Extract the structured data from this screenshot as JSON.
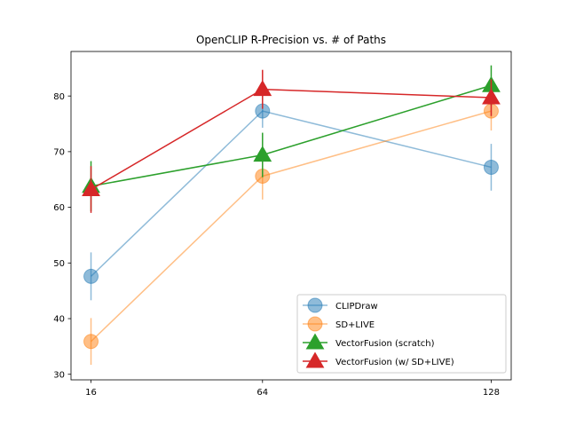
{
  "chart_data": {
    "type": "line",
    "title": "OpenCLIP R-Precision vs. # of Paths",
    "xlabel": "",
    "ylabel": "",
    "x": [
      16,
      64,
      128
    ],
    "x_tick_labels": [
      "16",
      "64",
      "128"
    ],
    "y_ticks": [
      30,
      40,
      50,
      60,
      70,
      80
    ],
    "y_tick_labels": [
      "30",
      "40",
      "50",
      "60",
      "70",
      "80"
    ],
    "ylim": [
      29,
      88
    ],
    "grid": false,
    "legend_position": "lower-right",
    "series": [
      {
        "name": "CLIPDraw",
        "color": "#1f77b4",
        "marker": "circle",
        "alpha": 0.5,
        "values": [
          47.6,
          77.3,
          67.2
        ],
        "errors": [
          4.3,
          3.0,
          4.2
        ]
      },
      {
        "name": "SD+LIVE",
        "color": "#ff7f0e",
        "marker": "circle",
        "alpha": 0.5,
        "values": [
          35.9,
          65.6,
          77.3
        ],
        "errors": [
          4.2,
          4.2,
          3.5
        ]
      },
      {
        "name": "VectorFusion (scratch)",
        "color": "#2ca02c",
        "marker": "triangle",
        "alpha": 1.0,
        "values": [
          63.8,
          69.4,
          81.9
        ],
        "errors": [
          4.5,
          4.0,
          3.6
        ]
      },
      {
        "name": "VectorFusion (w/ SD+LIVE)",
        "color": "#d62728",
        "marker": "triangle",
        "alpha": 1.0,
        "values": [
          63.2,
          81.2,
          79.7
        ],
        "errors": [
          4.2,
          3.5,
          3.3
        ]
      }
    ]
  }
}
